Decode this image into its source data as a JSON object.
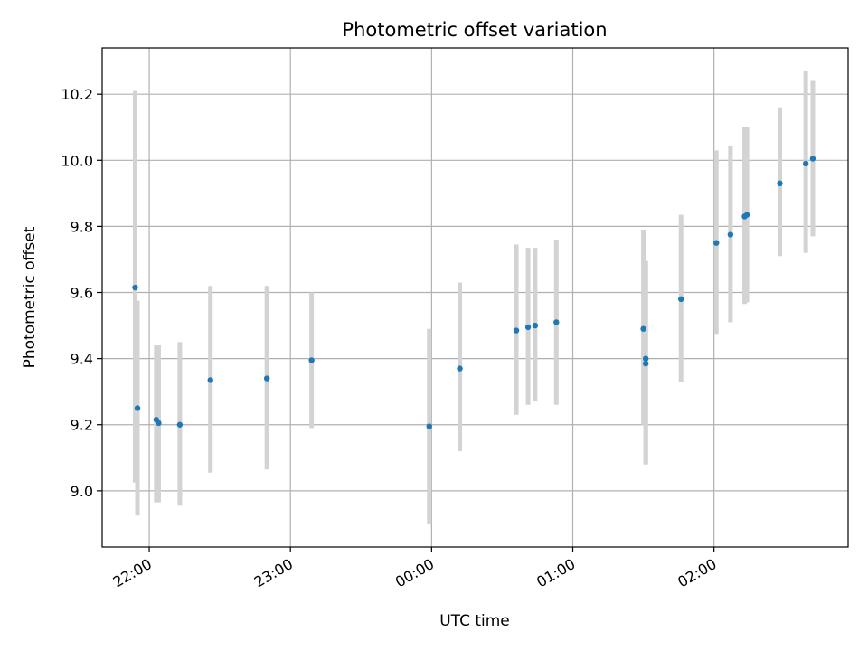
{
  "chart_data": {
    "type": "scatter",
    "title": "Photometric offset variation",
    "xlabel": "UTC time",
    "ylabel": "Photometric offset",
    "x_axis_kind": "time (HH:MM UTC)",
    "xlim": [
      "21:40",
      "02:57"
    ],
    "ylim": [
      8.83,
      10.34
    ],
    "grid": true,
    "x_ticks": [
      "22:00",
      "23:00",
      "00:00",
      "01:00",
      "02:00"
    ],
    "y_ticks": [
      "9.0",
      "9.2",
      "9.4",
      "9.6",
      "9.8",
      "10.0",
      "10.2"
    ],
    "marker_color": "#1f77b4",
    "errorbar_color": "#d3d3d3",
    "series": [
      {
        "points": [
          {
            "x": "21:54",
            "y": 9.615,
            "ylow": 9.025,
            "yhigh": 10.21
          },
          {
            "x": "21:55",
            "y": 9.25,
            "ylow": 8.925,
            "yhigh": 9.575
          },
          {
            "x": "22:03",
            "y": 9.215,
            "ylow": 8.965,
            "yhigh": 9.44
          },
          {
            "x": "22:04",
            "y": 9.205,
            "ylow": 8.965,
            "yhigh": 9.44
          },
          {
            "x": "22:13",
            "y": 9.2,
            "ylow": 8.955,
            "yhigh": 9.45
          },
          {
            "x": "22:26",
            "y": 9.335,
            "ylow": 9.055,
            "yhigh": 9.62
          },
          {
            "x": "22:50",
            "y": 9.34,
            "ylow": 9.065,
            "yhigh": 9.62
          },
          {
            "x": "23:09",
            "y": 9.395,
            "ylow": 9.19,
            "yhigh": 9.6
          },
          {
            "x": "23:59",
            "y": 9.195,
            "ylow": 8.9,
            "yhigh": 9.49
          },
          {
            "x": "00:12",
            "y": 9.37,
            "ylow": 9.12,
            "yhigh": 9.63
          },
          {
            "x": "00:36",
            "y": 9.485,
            "ylow": 9.23,
            "yhigh": 9.745
          },
          {
            "x": "00:41",
            "y": 9.495,
            "ylow": 9.26,
            "yhigh": 9.735
          },
          {
            "x": "00:44",
            "y": 9.5,
            "ylow": 9.27,
            "yhigh": 9.735
          },
          {
            "x": "00:53",
            "y": 9.51,
            "ylow": 9.26,
            "yhigh": 9.76
          },
          {
            "x": "01:30",
            "y": 9.49,
            "ylow": 9.2,
            "yhigh": 9.79
          },
          {
            "x": "01:31",
            "y": 9.4,
            "ylow": 9.08,
            "yhigh": 9.695
          },
          {
            "x": "01:31",
            "y": 9.385,
            "ylow": 9.08,
            "yhigh": 9.695
          },
          {
            "x": "01:46",
            "y": 9.58,
            "ylow": 9.33,
            "yhigh": 9.835
          },
          {
            "x": "02:01",
            "y": 9.75,
            "ylow": 9.475,
            "yhigh": 10.03
          },
          {
            "x": "02:07",
            "y": 9.775,
            "ylow": 9.51,
            "yhigh": 10.045
          },
          {
            "x": "02:13",
            "y": 9.83,
            "ylow": 9.565,
            "yhigh": 10.1
          },
          {
            "x": "02:14",
            "y": 9.835,
            "ylow": 9.57,
            "yhigh": 10.1
          },
          {
            "x": "02:28",
            "y": 9.93,
            "ylow": 9.71,
            "yhigh": 10.16
          },
          {
            "x": "02:39",
            "y": 9.99,
            "ylow": 9.72,
            "yhigh": 10.27
          },
          {
            "x": "02:42",
            "y": 10.005,
            "ylow": 9.77,
            "yhigh": 10.24
          }
        ]
      }
    ]
  }
}
